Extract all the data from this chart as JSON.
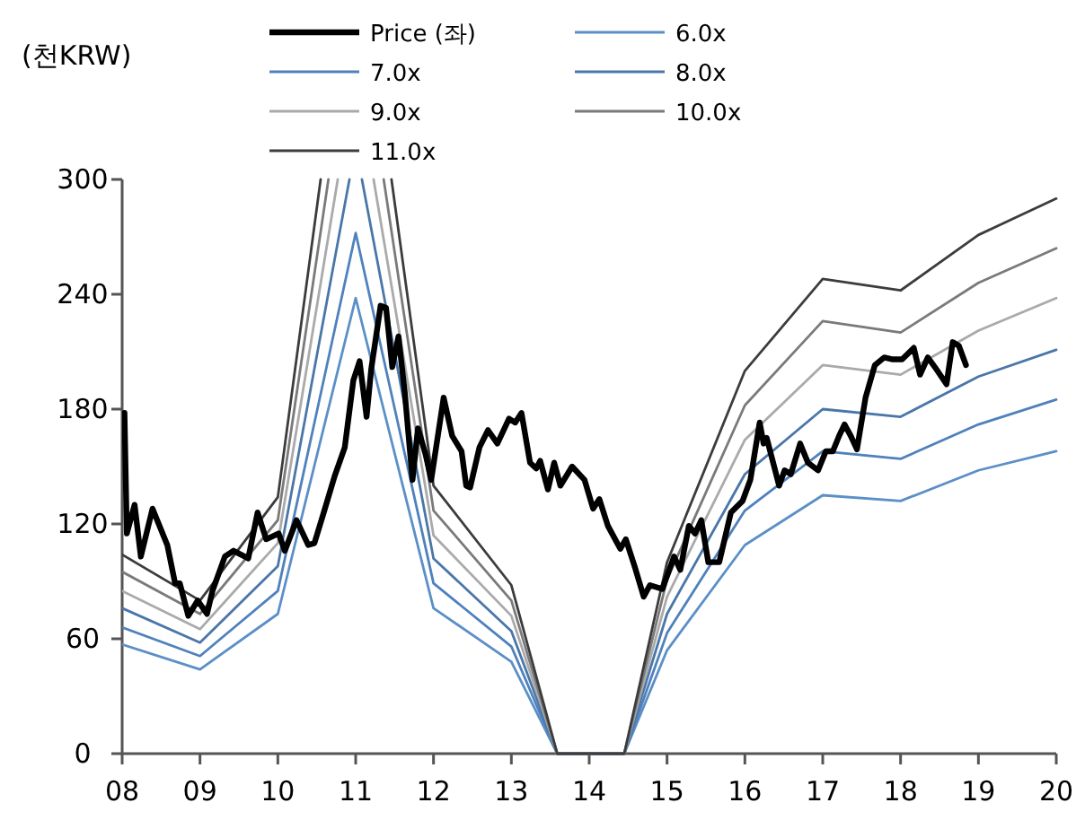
{
  "chart_data": {
    "type": "line",
    "ylabel": "(천KRW)",
    "xlim": [
      2008,
      2020
    ],
    "ylim": [
      0,
      300
    ],
    "xticks": [
      {
        "value": 2008,
        "label": "08"
      },
      {
        "value": 2009,
        "label": "09"
      },
      {
        "value": 2010,
        "label": "10"
      },
      {
        "value": 2011,
        "label": "11"
      },
      {
        "value": 2012,
        "label": "12"
      },
      {
        "value": 2013,
        "label": "13"
      },
      {
        "value": 2014,
        "label": "14"
      },
      {
        "value": 2015,
        "label": "15"
      },
      {
        "value": 2016,
        "label": "16"
      },
      {
        "value": 2017,
        "label": "17"
      },
      {
        "value": 2018,
        "label": "18"
      },
      {
        "value": 2019,
        "label": "19"
      },
      {
        "value": 2020,
        "label": "20"
      }
    ],
    "yticks": [
      0,
      60,
      120,
      180,
      240,
      300
    ],
    "grid": false,
    "legend": "top",
    "series": [
      {
        "name": "Price (좌)",
        "color": "#000000",
        "x": [
          2008.03,
          2008.06,
          2008.16,
          2008.24,
          2008.39,
          2008.58,
          2008.68,
          2008.74,
          2008.85,
          2008.97,
          2009.09,
          2009.16,
          2009.32,
          2009.43,
          2009.62,
          2009.74,
          2009.85,
          2010.01,
          2010.09,
          2010.24,
          2010.39,
          2010.47,
          2010.59,
          2010.73,
          2010.86,
          2010.97,
          2011.05,
          2011.14,
          2011.2,
          2011.32,
          2011.39,
          2011.47,
          2011.55,
          2011.63,
          2011.73,
          2011.8,
          2011.9,
          2011.97,
          2012.13,
          2012.24,
          2012.36,
          2012.42,
          2012.47,
          2012.59,
          2012.7,
          2012.82,
          2012.97,
          2013.05,
          2013.13,
          2013.24,
          2013.32,
          2013.37,
          2013.47,
          2013.55,
          2013.63,
          2013.78,
          2013.94,
          2014.05,
          2014.13,
          2014.24,
          2014.4,
          2014.47,
          2014.59,
          2014.7,
          2014.78,
          2014.94,
          2015.09,
          2015.17,
          2015.28,
          2015.36,
          2015.44,
          2015.53,
          2015.67,
          2015.82,
          2015.97,
          2016.07,
          2016.19,
          2016.24,
          2016.28,
          2016.44,
          2016.51,
          2016.59,
          2016.71,
          2016.81,
          2016.94,
          2017.04,
          2017.13,
          2017.21,
          2017.28,
          2017.36,
          2017.44,
          2017.55,
          2017.67,
          2017.79,
          2017.9,
          2018.02,
          2018.17,
          2018.25,
          2018.35,
          2018.44,
          2018.59,
          2018.67,
          2018.75,
          2018.84
        ],
        "values": [
          178,
          115,
          130,
          103,
          128,
          109,
          89,
          89,
          72,
          80,
          73,
          85,
          103,
          106,
          102,
          126,
          112,
          115,
          106,
          122,
          109,
          110,
          126,
          145,
          160,
          195,
          205,
          176,
          201,
          234,
          233,
          202,
          218,
          189,
          143,
          170,
          156,
          143,
          186,
          166,
          158,
          140,
          139,
          160,
          169,
          162,
          175,
          173,
          178,
          152,
          149,
          153,
          138,
          152,
          140,
          150,
          143,
          128,
          133,
          119,
          107,
          112,
          97,
          82,
          88,
          86,
          103,
          96,
          119,
          115,
          122,
          100,
          100,
          126,
          132,
          143,
          173,
          162,
          165,
          140,
          148,
          146,
          162,
          152,
          148,
          158,
          158,
          166,
          172,
          166,
          159,
          186,
          203,
          207,
          206,
          206,
          212,
          198,
          207,
          202,
          193,
          215,
          213,
          203
        ]
      },
      {
        "name": "6.0x",
        "color": "#5b8fc7",
        "x": [
          2008,
          2009,
          2010,
          2011,
          2012,
          2013,
          2013.59,
          2014.45,
          2015,
          2016,
          2017,
          2018,
          2019,
          2020
        ],
        "values": [
          57,
          44,
          73,
          238,
          76,
          48,
          0,
          0,
          54,
          109,
          135,
          132,
          148,
          158
        ]
      },
      {
        "name": "7.0x",
        "color": "#4f81bd",
        "x": [
          2008,
          2009,
          2010,
          2011,
          2012,
          2013,
          2013.59,
          2014.45,
          2015,
          2016,
          2017,
          2018,
          2019,
          2020
        ],
        "values": [
          66,
          51,
          85,
          272,
          89,
          56,
          0,
          0,
          63,
          127,
          158,
          154,
          172,
          185
        ]
      },
      {
        "name": "8.0x",
        "color": "#4a76a8",
        "x": [
          2008,
          2009,
          2010,
          2010.92,
          null,
          2011.08,
          2012,
          2013,
          2013.59,
          2014.45,
          2015,
          2016,
          2017,
          2018,
          2019,
          2020
        ],
        "values": [
          76,
          58,
          98,
          300,
          null,
          300,
          102,
          64,
          0,
          0,
          73,
          146,
          180,
          176,
          197,
          211
        ]
      },
      {
        "name": "9.0x",
        "color": "#aaaaaa",
        "x": [
          2008,
          2009,
          2010,
          2010.77,
          null,
          2011.23,
          2012,
          2013,
          2013.59,
          2014.45,
          2015,
          2016,
          2017,
          2018,
          2019,
          2020
        ],
        "values": [
          85,
          65,
          110,
          300,
          null,
          300,
          114,
          72,
          0,
          0,
          82,
          164,
          203,
          198,
          221,
          238
        ]
      },
      {
        "name": "10.0x",
        "color": "#7a7a7a",
        "x": [
          2008,
          2009,
          2010,
          2010.65,
          null,
          2011.36,
          2012,
          2013,
          2013.59,
          2014.45,
          2015,
          2016,
          2017,
          2018,
          2019,
          2020
        ],
        "values": [
          95,
          73,
          122,
          300,
          null,
          300,
          127,
          80,
          0,
          0,
          91,
          182,
          226,
          220,
          246,
          264
        ]
      },
      {
        "name": "11.0x",
        "color": "#3c3c3c",
        "x": [
          2008,
          2009,
          2010,
          2010.55,
          null,
          2011.46,
          2012,
          2013,
          2013.59,
          2014.45,
          2015,
          2016,
          2017,
          2018,
          2019,
          2020
        ],
        "values": [
          104,
          80,
          134,
          300,
          null,
          300,
          140,
          88,
          0,
          0,
          100,
          200,
          248,
          242,
          271,
          290
        ]
      }
    ]
  }
}
